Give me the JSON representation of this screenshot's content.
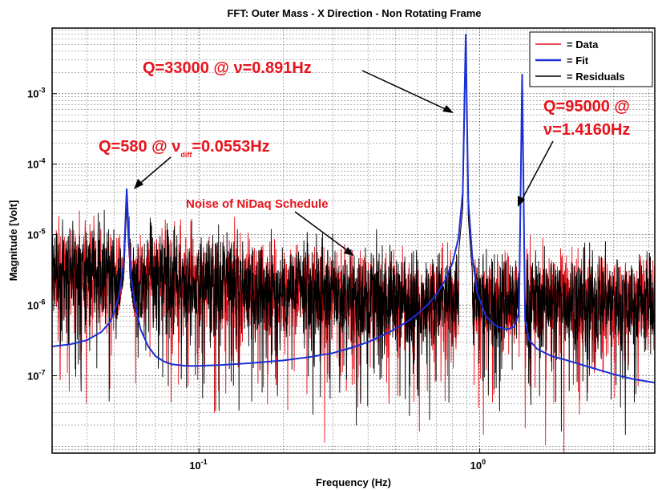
{
  "chart_data": {
    "type": "line",
    "title": "FFT: Outer Mass - X Direction - Non Rotating Frame",
    "xlabel": "Frequency (Hz)",
    "ylabel": "Magnitude [Volt]",
    "xscale": "log",
    "yscale": "log",
    "xlim": [
      0.03,
      4.2
    ],
    "ylim": [
      8e-09,
      0.0085
    ],
    "grid": true,
    "legend_position": "top-right",
    "x_ticks": [
      {
        "value": 0.1,
        "base": "10",
        "exp": "-1"
      },
      {
        "value": 1,
        "base": "10",
        "exp": "0"
      }
    ],
    "y_ticks": [
      {
        "value": 1e-07,
        "base": "10",
        "exp": "-7"
      },
      {
        "value": 1e-06,
        "base": "10",
        "exp": "-6"
      },
      {
        "value": 1e-05,
        "base": "10",
        "exp": "-5"
      },
      {
        "value": 0.0001,
        "base": "10",
        "exp": "-4"
      },
      {
        "value": 0.001,
        "base": "10",
        "exp": "-3"
      }
    ],
    "series": [
      {
        "name": "= Data",
        "color": "#e8141c"
      },
      {
        "name": "= Fit",
        "color": "#1a2fd6",
        "x": [
          0.03,
          0.035,
          0.04,
          0.045,
          0.048,
          0.05,
          0.052,
          0.054,
          0.0553,
          0.057,
          0.059,
          0.062,
          0.066,
          0.07,
          0.075,
          0.08,
          0.09,
          0.1,
          0.12,
          0.15,
          0.2,
          0.25,
          0.3,
          0.35,
          0.4,
          0.45,
          0.5,
          0.55,
          0.6,
          0.65,
          0.7,
          0.75,
          0.8,
          0.84,
          0.87,
          0.891,
          0.91,
          0.94,
          0.98,
          1.05,
          1.15,
          1.25,
          1.33,
          1.38,
          1.416,
          1.45,
          1.5,
          1.6,
          1.8,
          2.0,
          2.5,
          3.0,
          3.5,
          4.2
        ],
        "y": [
          2.6e-07,
          2.8e-07,
          3.2e-07,
          4.2e-07,
          5.6e-07,
          8e-07,
          1.4e-06,
          4e-06,
          4.5e-05,
          3e-06,
          1.1e-06,
          4.5e-07,
          2.6e-07,
          1.9e-07,
          1.6e-07,
          1.45e-07,
          1.38e-07,
          1.38e-07,
          1.42e-07,
          1.5e-07,
          1.65e-07,
          1.85e-07,
          2.1e-07,
          2.5e-07,
          3e-07,
          3.7e-07,
          4.6e-07,
          5.8e-07,
          7.5e-07,
          1e-06,
          1.4e-06,
          2.2e-06,
          4e-06,
          9e-06,
          4e-05,
          0.007,
          3e-05,
          5e-06,
          1.5e-06,
          7e-07,
          5e-07,
          4.5e-07,
          5e-07,
          8e-07,
          0.0019,
          6e-07,
          3.2e-07,
          2.4e-07,
          1.9e-07,
          1.7e-07,
          1.3e-07,
          1.05e-07,
          9e-08,
          8e-08
        ]
      },
      {
        "name": "= Residuals",
        "color": "#000000"
      }
    ],
    "annotations": [
      {
        "text": "Q=33000 @ ν=0.891Hz",
        "target_x": 0.891,
        "target_y": 0.00045
      },
      {
        "text_main": "Q=580 @ ν",
        "text_sub": "diff",
        "text_tail": "=0.0553Hz",
        "target_x": 0.0553,
        "target_y": 4.5e-05
      },
      {
        "text_line1": "Q=95000 @",
        "text_line2": "ν=1.4160Hz",
        "target_x": 1.416,
        "target_y": 1.5e-05
      },
      {
        "text": "Noise of NiDaq Schedule",
        "target_x": 0.45,
        "target_y": 1e-05
      }
    ]
  }
}
